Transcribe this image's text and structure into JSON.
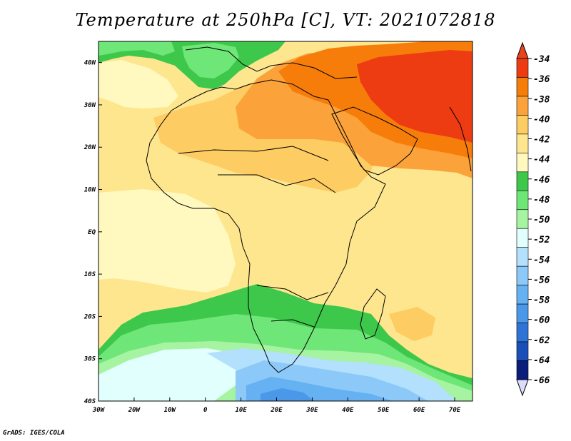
{
  "title": "Temperature at 250hPa [C], VT: 2021072818",
  "credit": "GrADS: IGES/COLA",
  "map": {
    "lon_range": [
      -30,
      75
    ],
    "lat_range": [
      -40,
      45
    ],
    "x_ticks": [
      {
        "lon": -30,
        "label": "30W"
      },
      {
        "lon": -20,
        "label": "20W"
      },
      {
        "lon": -10,
        "label": "10W"
      },
      {
        "lon": 0,
        "label": "0"
      },
      {
        "lon": 10,
        "label": "10E"
      },
      {
        "lon": 20,
        "label": "20E"
      },
      {
        "lon": 30,
        "label": "30E"
      },
      {
        "lon": 40,
        "label": "40E"
      },
      {
        "lon": 50,
        "label": "50E"
      },
      {
        "lon": 60,
        "label": "60E"
      },
      {
        "lon": 70,
        "label": "70E"
      }
    ],
    "y_ticks": [
      {
        "lat": 40,
        "label": "40N"
      },
      {
        "lat": 30,
        "label": "30N"
      },
      {
        "lat": 20,
        "label": "20N"
      },
      {
        "lat": 10,
        "label": "10N"
      },
      {
        "lat": 0,
        "label": "EQ"
      },
      {
        "lat": -10,
        "label": "10S"
      },
      {
        "lat": -20,
        "label": "20S"
      },
      {
        "lat": -30,
        "label": "30S"
      },
      {
        "lat": -40,
        "label": "40S"
      }
    ]
  },
  "colorbar": {
    "labels": [
      "-34",
      "-36",
      "-38",
      "-40",
      "-42",
      "-44",
      "-46",
      "-48",
      "-50",
      "-52",
      "-54",
      "-56",
      "-58",
      "-60",
      "-62",
      "-64",
      "-66"
    ],
    "colors": [
      "#ed3b12",
      "#f77d0b",
      "#fba33a",
      "#fdcc62",
      "#fee68f",
      "#fff9bf",
      "#3ec84b",
      "#6ee678",
      "#a6f3a2",
      "#e0fffd",
      "#b3e1fd",
      "#8cc9f8",
      "#66b1f1",
      "#4b98e9",
      "#2f73d6",
      "#1b4fb8",
      "#0b1d7b"
    ],
    "top_arrow_color": "#e8431b",
    "bottom_arrow_color": "#dcdcfc"
  }
}
